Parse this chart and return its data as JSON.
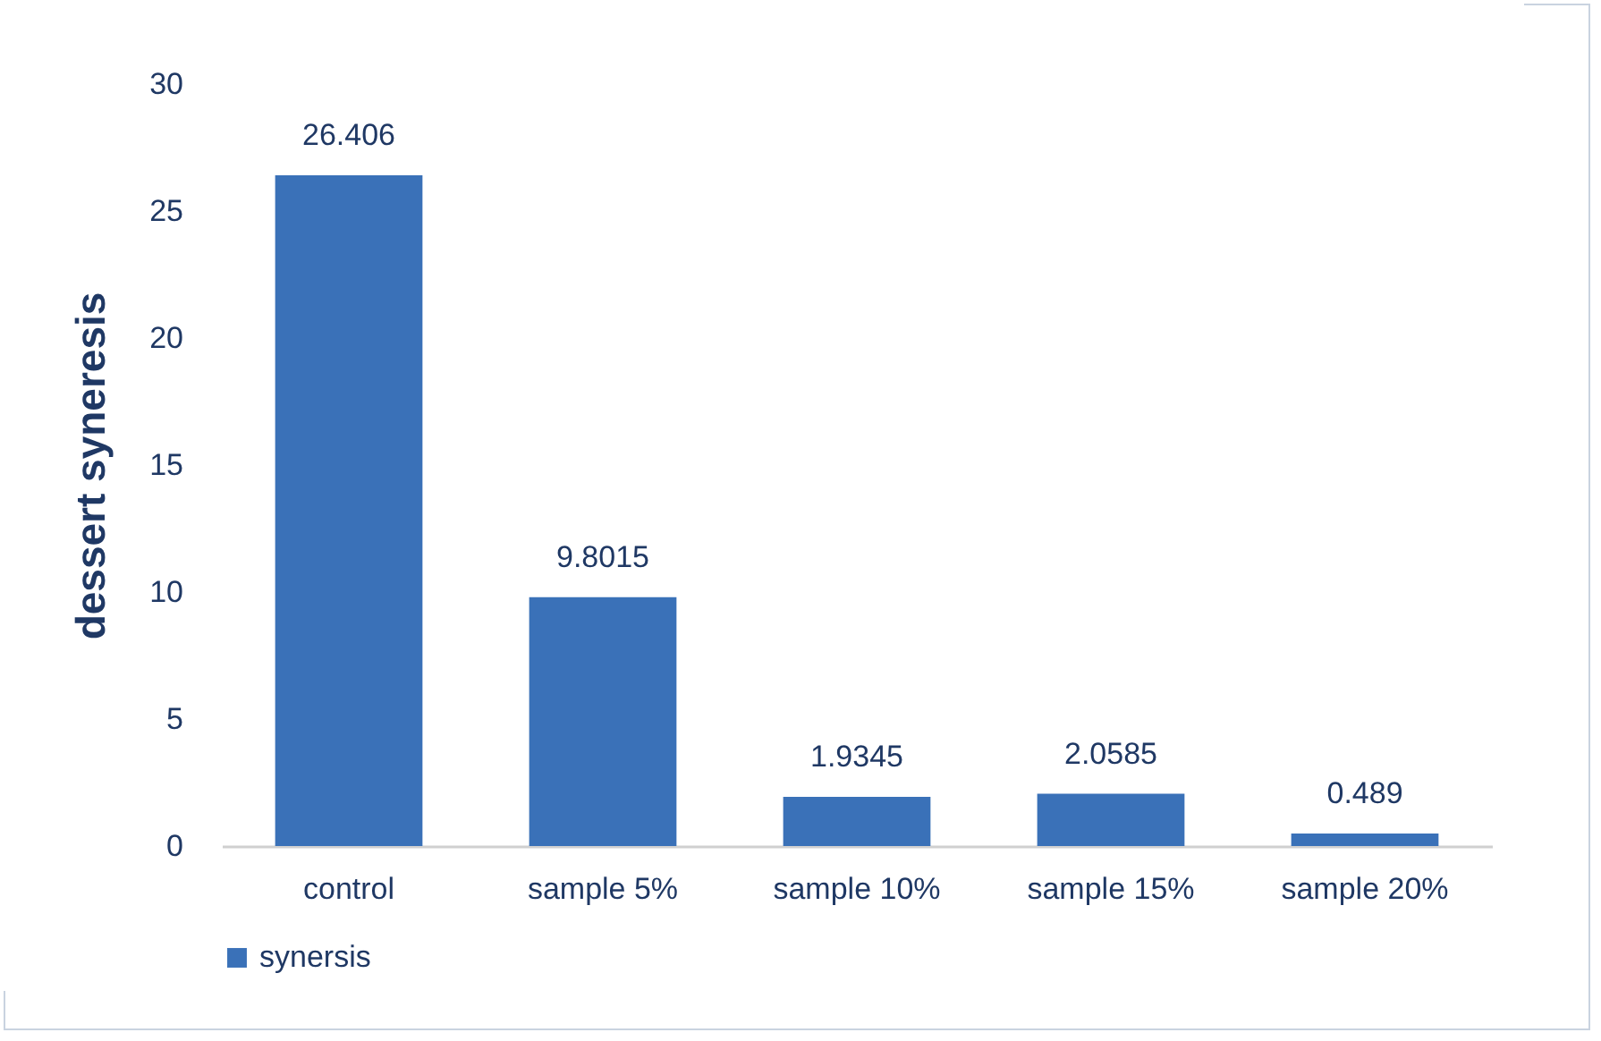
{
  "chart_data": {
    "type": "bar",
    "ylabel": "dessert syneresis",
    "categories": [
      "control",
      "sample 5%",
      "sample 10%",
      "sample 15%",
      "sample 20%"
    ],
    "series": [
      {
        "name": "synersis",
        "color": "#3a71b8",
        "values": [
          26.406,
          9.8015,
          1.9345,
          2.0585,
          0.489
        ]
      }
    ],
    "ylim": [
      0,
      30
    ],
    "yticks": [
      0,
      5,
      10,
      15,
      20,
      25,
      30
    ],
    "grid": false,
    "legend": "bottom",
    "data_labels": true
  }
}
